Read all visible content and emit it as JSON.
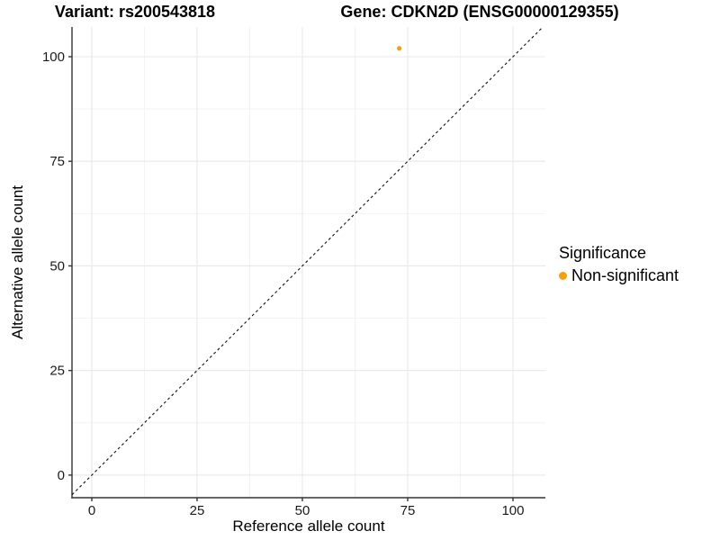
{
  "header": {
    "variant_title": "Variant: rs200543818",
    "gene_title": "Gene: CDKN2D (ENSG00000129355)"
  },
  "chart_data": {
    "type": "scatter",
    "title_left": "Variant: rs200543818",
    "title_right": "Gene: CDKN2D (ENSG00000129355)",
    "xlabel": "Reference allele count",
    "ylabel": "Alternative allele count",
    "xlim": [
      -4.7,
      107.7
    ],
    "ylim": [
      -5.4,
      107.1
    ],
    "x_ticks": [
      0,
      25,
      50,
      75,
      100
    ],
    "x_tick_labels": [
      "0",
      "25",
      "50",
      "75",
      "100"
    ],
    "y_ticks": [
      0,
      25,
      50,
      75,
      100
    ],
    "y_tick_labels": [
      "0",
      "25",
      "50",
      "75",
      "100"
    ],
    "x_minor_ticks": [
      12.5,
      37.5,
      62.5,
      87.5
    ],
    "y_minor_ticks": [
      12.5,
      37.5,
      62.5,
      87.5
    ],
    "grid": true,
    "legend_position": "right",
    "identity_line": {
      "slope": 1,
      "intercept": 0,
      "style": "dashed",
      "color": "#111111"
    },
    "series": [
      {
        "name": "Non-significant",
        "color": "#FA9E0C",
        "points": [
          {
            "x": 73,
            "y": 102
          }
        ]
      }
    ],
    "colors": {
      "grid_major": "#e8e8e8",
      "grid_minor": "#f3f3f3",
      "axis_line": "#333333",
      "point": "#FA9E0C"
    }
  },
  "legend": {
    "title": "Significance",
    "items": [
      {
        "label": "Non-significant",
        "color": "#FA9E0C",
        "marker": "circle-icon"
      }
    ]
  }
}
